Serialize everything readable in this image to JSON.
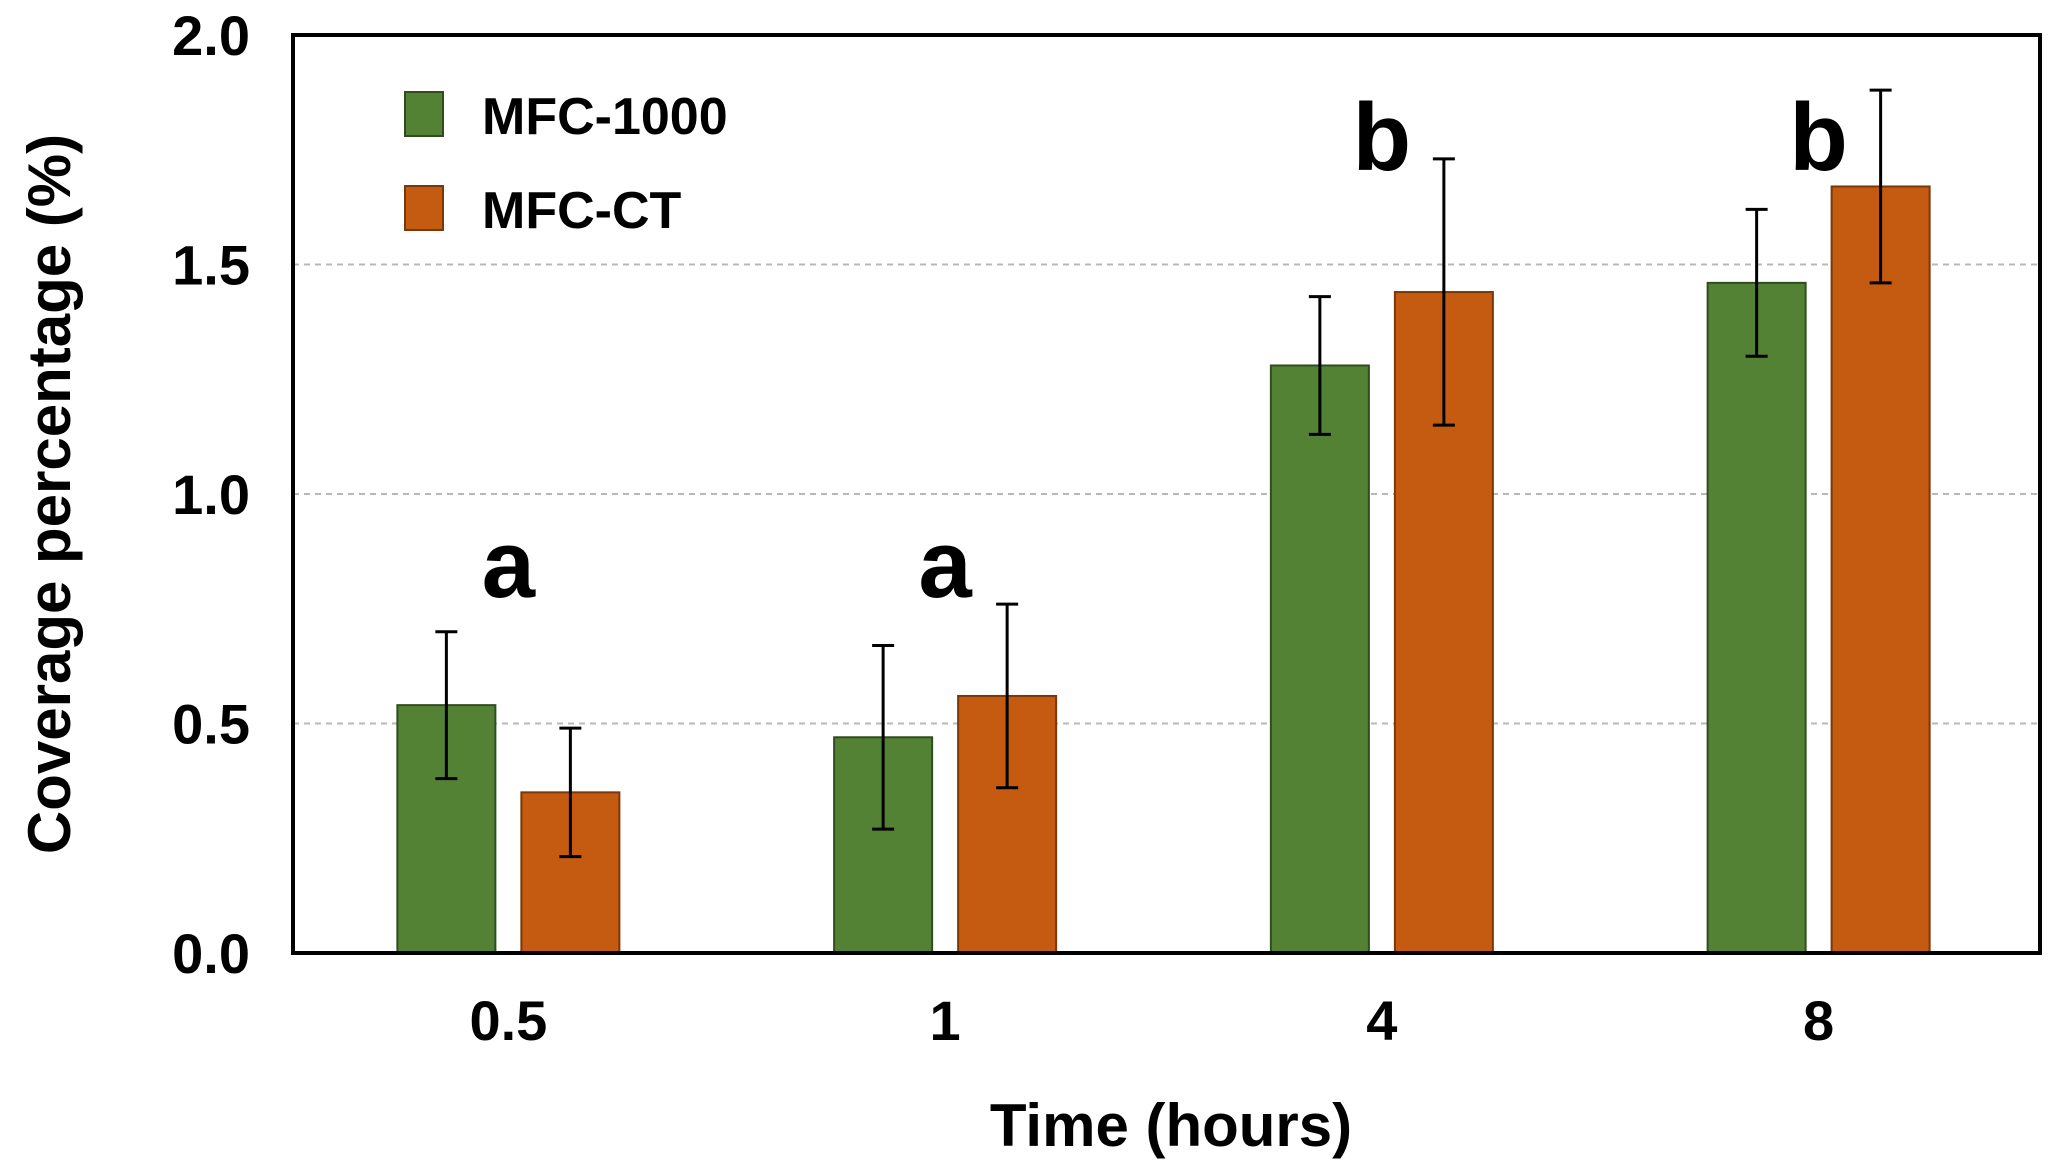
{
  "chart_data": {
    "type": "bar",
    "title": "",
    "xlabel": "Time (hours)",
    "ylabel": "Coverage percentage (%)",
    "ylim": [
      0,
      2.0
    ],
    "yticks": [
      "0.0",
      "0.5",
      "1.0",
      "1.5",
      "2.0"
    ],
    "ytick_values": [
      0,
      0.5,
      1.0,
      1.5,
      2.0
    ],
    "grid": true,
    "legend_position": "top-left",
    "categories": [
      "0.5",
      "1",
      "4",
      "8"
    ],
    "series": [
      {
        "name": "MFC-1000",
        "color": "#548235",
        "values": [
          0.54,
          0.47,
          1.28,
          1.46
        ],
        "errors": [
          0.16,
          0.2,
          0.15,
          0.16
        ]
      },
      {
        "name": "MFC-CT",
        "color": "#C55A11",
        "values": [
          0.35,
          0.56,
          1.44,
          1.67
        ],
        "errors": [
          0.14,
          0.2,
          0.29,
          0.21
        ]
      }
    ],
    "annotations": [
      {
        "category": "0.5",
        "text": "a",
        "value": 0.85
      },
      {
        "category": "1",
        "text": "a",
        "value": 0.85
      },
      {
        "category": "4",
        "text": "b",
        "value": 1.78
      },
      {
        "category": "8",
        "text": "b",
        "value": 1.78
      }
    ]
  }
}
